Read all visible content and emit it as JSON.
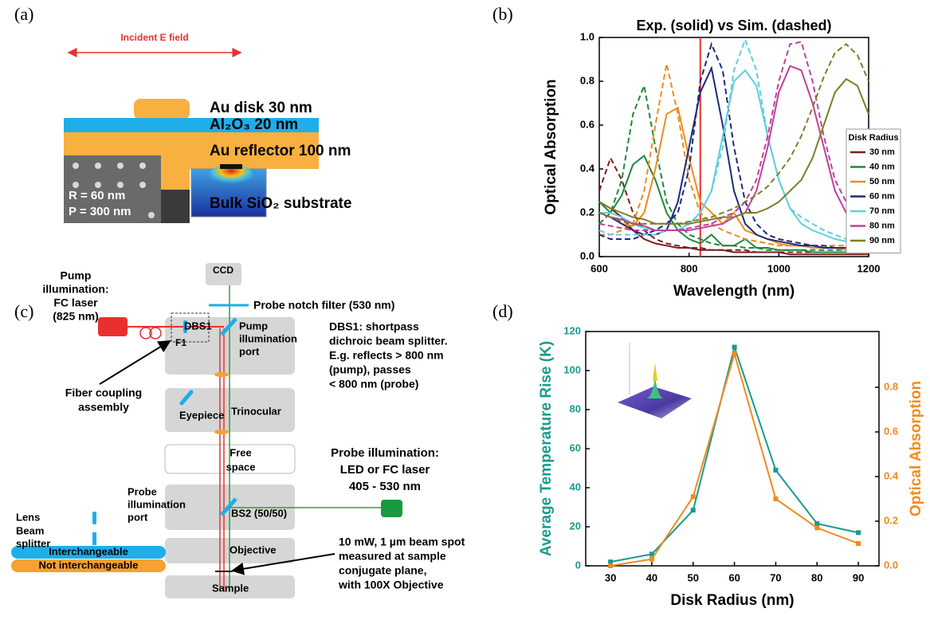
{
  "panel_labels": [
    "(a)",
    "(b)",
    "(c)",
    "(d)"
  ],
  "panel_a": {
    "field": "Incident E field",
    "disk": "Au disk 30 nm",
    "oxide": "Al₂O₃ 20 nm",
    "reflector": "Au reflector 100 nm",
    "substrate": "Bulk SiO₂ substrate",
    "sem": [
      "R = 60 nm",
      "P = 300 nm"
    ]
  },
  "panel_c": {
    "pump": [
      "Pump",
      "illumination:",
      "FC laser",
      "(825 nm)"
    ],
    "ccd": "CCD",
    "notch": "Probe notch filter (530 nm)",
    "dbs1": "DBS1",
    "f1": "F1",
    "pump_port": [
      "Pump",
      "illumination",
      "port"
    ],
    "dbs1_note": [
      "DBS1: shortpass",
      "dichroic beam splitter.",
      "E.g. reflects > 800 nm",
      "(pump), passes",
      "< 800 nm (probe)"
    ],
    "fiber": [
      "Fiber coupling",
      "assembly"
    ],
    "eyepiece": "Eyepiece",
    "trinocular": "Trinocular",
    "free_space": [
      "Free",
      "space"
    ],
    "probe": [
      "Probe illumination:",
      "LED or FC laser",
      "405 - 530 nm"
    ],
    "lens": "Lens",
    "beam_splitter": [
      "Beam",
      "splitter"
    ],
    "probe_port": [
      "Probe",
      "illumination",
      "port"
    ],
    "bs2": "BS2 (50/50)",
    "interchangeable": "Interchangeable",
    "not_interchangeable": "Not interchangeable",
    "objective": "Objective",
    "sample": "Sample",
    "spot_note": [
      "10 mW, 1 µm beam spot",
      "measured at sample",
      "conjugate plane,",
      "with 100X Objective"
    ]
  },
  "chart_data": [
    {
      "type": "line",
      "title": "Exp. (solid) vs Sim. (dashed)",
      "xlabel": "Wavelength (nm)",
      "ylabel": "Optical Absorption",
      "legend_title": "Disk Radius",
      "legend": "right",
      "x": [
        600,
        625,
        650,
        675,
        700,
        725,
        750,
        775,
        800,
        825,
        850,
        875,
        900,
        925,
        950,
        975,
        1000,
        1025,
        1050,
        1075,
        1100,
        1125,
        1150,
        1175,
        1200
      ],
      "xlim": [
        600,
        1200
      ],
      "xticks": [
        600,
        800,
        1000,
        1200
      ],
      "ylim": [
        0,
        1.0
      ],
      "yticks": [
        {
          "value": 0,
          "label": "0.0"
        },
        0.2,
        0.4,
        0.6,
        0.8,
        {
          "value": 1.0,
          "label": "1.0"
        }
      ],
      "vline": 825,
      "vline_color": "#e8312f",
      "series": [
        {
          "name": "30 nm",
          "color": "#7b1e1e",
          "values": [
            0.25,
            0.22,
            0.18,
            0.12,
            0.08,
            0.06,
            0.05,
            0.04,
            0.04,
            0.03,
            0.03,
            0.03,
            0.02,
            0.02,
            0.02,
            0.02,
            0.02,
            0.01,
            0.01,
            0.01,
            0.01,
            0.01,
            0.01,
            0.01,
            0.01
          ],
          "sim_values": [
            0.3,
            0.45,
            0.35,
            0.2,
            0.12,
            0.08,
            0.06,
            0.05,
            0.04,
            0.04,
            0.03,
            0.03,
            0.03,
            0.03,
            0.02,
            0.02,
            0.02,
            0.02,
            0.02,
            0.02,
            0.02,
            0.02,
            0.02,
            0.02,
            0.02
          ]
        },
        {
          "name": "40 nm",
          "color": "#1f8a3c",
          "values": [
            0.25,
            0.2,
            0.28,
            0.42,
            0.46,
            0.35,
            0.2,
            0.12,
            0.08,
            0.06,
            0.1,
            0.05,
            0.05,
            0.08,
            0.04,
            0.04,
            0.03,
            0.03,
            0.03,
            0.02,
            0.02,
            0.02,
            0.02,
            0.02,
            0.02
          ],
          "sim_values": [
            0.15,
            0.2,
            0.35,
            0.65,
            0.78,
            0.5,
            0.25,
            0.15,
            0.1,
            0.08,
            0.06,
            0.05,
            0.05,
            0.04,
            0.04,
            0.03,
            0.03,
            0.03,
            0.03,
            0.03,
            0.03,
            0.03,
            0.03,
            0.03,
            0.03
          ]
        },
        {
          "name": "50 nm",
          "color": "#f28a1c",
          "values": [
            0.2,
            0.18,
            0.15,
            0.14,
            0.2,
            0.4,
            0.65,
            0.68,
            0.45,
            0.25,
            0.2,
            0.15,
            0.2,
            0.12,
            0.1,
            0.08,
            0.06,
            0.05,
            0.05,
            0.04,
            0.04,
            0.04,
            0.03,
            0.03,
            0.03
          ],
          "sim_values": [
            0.1,
            0.1,
            0.12,
            0.15,
            0.3,
            0.6,
            0.88,
            0.65,
            0.35,
            0.2,
            0.15,
            0.12,
            0.1,
            0.08,
            0.07,
            0.06,
            0.05,
            0.05,
            0.05,
            0.05,
            0.05,
            0.05,
            0.05,
            0.05,
            0.05
          ]
        },
        {
          "name": "60 nm",
          "color": "#1d2a7a",
          "values": [
            0.2,
            0.18,
            0.15,
            0.12,
            0.1,
            0.1,
            0.12,
            0.25,
            0.5,
            0.75,
            0.86,
            0.6,
            0.3,
            0.15,
            0.1,
            0.08,
            0.07,
            0.06,
            0.05,
            0.05,
            0.04,
            0.04,
            0.04,
            0.03,
            0.03
          ],
          "sim_values": [
            0.1,
            0.08,
            0.08,
            0.08,
            0.1,
            0.12,
            0.15,
            0.2,
            0.4,
            0.8,
            0.97,
            0.85,
            0.5,
            0.25,
            0.15,
            0.1,
            0.08,
            0.07,
            0.06,
            0.05,
            0.05,
            0.04,
            0.04,
            0.04,
            0.04
          ]
        },
        {
          "name": "70 nm",
          "color": "#5fcfe0",
          "values": [
            0.2,
            0.2,
            0.18,
            0.15,
            0.13,
            0.12,
            0.12,
            0.12,
            0.15,
            0.2,
            0.3,
            0.55,
            0.8,
            0.85,
            0.78,
            0.55,
            0.35,
            0.22,
            0.15,
            0.12,
            0.1,
            0.08,
            0.07,
            0.06,
            0.05
          ],
          "sim_values": [
            0.12,
            0.1,
            0.1,
            0.1,
            0.1,
            0.1,
            0.12,
            0.12,
            0.15,
            0.2,
            0.3,
            0.5,
            0.85,
            0.99,
            0.85,
            0.55,
            0.35,
            0.22,
            0.18,
            0.15,
            0.12,
            0.1,
            0.08,
            0.07,
            0.06
          ]
        },
        {
          "name": "80 nm",
          "color": "#c2409c",
          "values": [
            0.2,
            0.18,
            0.17,
            0.15,
            0.14,
            0.12,
            0.12,
            0.12,
            0.12,
            0.13,
            0.14,
            0.15,
            0.18,
            0.2,
            0.3,
            0.5,
            0.75,
            0.87,
            0.85,
            0.7,
            0.5,
            0.3,
            0.2,
            0.12,
            0.08
          ],
          "sim_values": [
            0.15,
            0.14,
            0.13,
            0.12,
            0.12,
            0.12,
            0.12,
            0.12,
            0.13,
            0.14,
            0.15,
            0.18,
            0.2,
            0.25,
            0.35,
            0.55,
            0.8,
            0.97,
            0.98,
            0.8,
            0.55,
            0.35,
            0.25,
            0.18,
            0.12
          ]
        },
        {
          "name": "90 nm",
          "color": "#7d7d2a",
          "values": [
            0.25,
            0.22,
            0.2,
            0.18,
            0.17,
            0.15,
            0.15,
            0.15,
            0.15,
            0.16,
            0.17,
            0.18,
            0.18,
            0.2,
            0.2,
            0.22,
            0.25,
            0.3,
            0.35,
            0.45,
            0.6,
            0.75,
            0.81,
            0.78,
            0.65
          ],
          "sim_values": [
            0.2,
            0.18,
            0.16,
            0.15,
            0.15,
            0.15,
            0.15,
            0.15,
            0.16,
            0.17,
            0.18,
            0.2,
            0.22,
            0.25,
            0.28,
            0.32,
            0.38,
            0.45,
            0.55,
            0.68,
            0.82,
            0.93,
            0.97,
            0.92,
            0.8
          ]
        }
      ]
    },
    {
      "type": "line",
      "xlabel": "Disk Radius (nm)",
      "ylabel": "Average Temperature Rise (K)",
      "y2label": "Optical Absorption",
      "x": [
        30,
        40,
        50,
        60,
        70,
        80,
        90
      ],
      "xlim": [
        24,
        95
      ],
      "xticks": [
        30,
        40,
        50,
        60,
        70,
        80,
        90
      ],
      "ylim": [
        0,
        120
      ],
      "yticks": [
        0,
        20,
        40,
        60,
        80,
        100,
        120
      ],
      "y2lim": [
        0,
        1.05
      ],
      "y2ticks": [
        {
          "value": 0,
          "label": "0.0"
        },
        0.2,
        0.4,
        0.6,
        0.8
      ],
      "series": [
        {
          "color": "#1a9a8e",
          "marker": "square",
          "values": [
            2,
            6,
            28.5,
            112,
            49,
            21.6,
            17
          ]
        },
        {
          "color": "#f28a1c",
          "marker": "square",
          "axis": "y2",
          "values": [
            0.0,
            0.03,
            0.31,
            0.95,
            0.3,
            0.17,
            0.1
          ]
        }
      ]
    }
  ]
}
